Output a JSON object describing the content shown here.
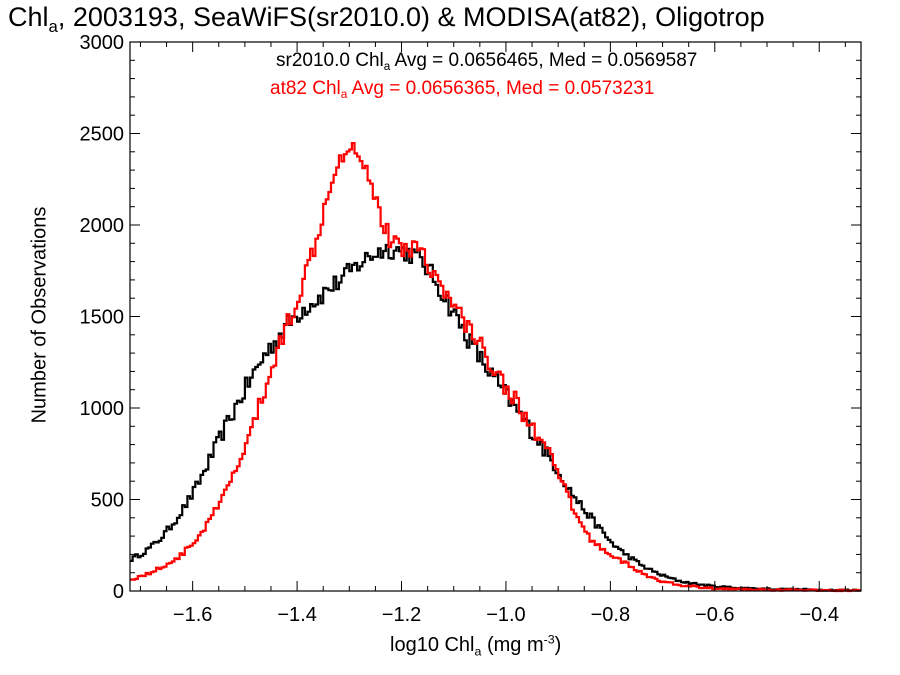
{
  "chart_data": {
    "type": "line",
    "title": {
      "prefix": "Chl",
      "sub": "a",
      "rest": ", 2003193, SeaWiFS(sr2010.0) & MODISA(at82), Oligotrop"
    },
    "xlabel": {
      "prefix": "log10 Chl",
      "sub": "a",
      "mid": " (mg m",
      "sup": "-3",
      "suffix": ")"
    },
    "ylabel": "Number of Observations",
    "xlim": [
      -1.72,
      -0.32
    ],
    "ylim": [
      0,
      3000
    ],
    "x_ticks": [
      -1.6,
      -1.4,
      -1.2,
      -1.0,
      -0.8,
      -0.6,
      -0.4
    ],
    "x_tick_labels": [
      "−1.6",
      "−1.4",
      "−1.2",
      "−1.0",
      "−0.8",
      "−0.6",
      "−0.4"
    ],
    "y_ticks": [
      0,
      500,
      1000,
      1500,
      2000,
      2500,
      3000
    ],
    "y_tick_labels": [
      "0",
      "500",
      "1000",
      "1500",
      "2000",
      "2500",
      "3000"
    ],
    "grid": false,
    "annotations": [
      {
        "series": "sr2010.0",
        "prefix": "sr2010.0 Chl",
        "sub": "a",
        "suffix": " Avg = 0.0656465, Med = 0.0569587",
        "color": "#000000"
      },
      {
        "series": "at82",
        "prefix": "at82 Chl",
        "sub": "a",
        "suffix": " Avg = 0.0656365, Med = 0.0573231",
        "color": "#ff0000"
      }
    ],
    "series": [
      {
        "name": "sr2010.0",
        "color": "#000000",
        "points": [
          [
            -1.72,
            170
          ],
          [
            -1.7,
            200
          ],
          [
            -1.68,
            240
          ],
          [
            -1.66,
            290
          ],
          [
            -1.64,
            360
          ],
          [
            -1.62,
            440
          ],
          [
            -1.6,
            530
          ],
          [
            -1.58,
            640
          ],
          [
            -1.56,
            760
          ],
          [
            -1.54,
            880
          ],
          [
            -1.52,
            990
          ],
          [
            -1.5,
            1100
          ],
          [
            -1.48,
            1200
          ],
          [
            -1.46,
            1300
          ],
          [
            -1.44,
            1370
          ],
          [
            -1.42,
            1450
          ],
          [
            -1.4,
            1510
          ],
          [
            -1.38,
            1560
          ],
          [
            -1.36,
            1600
          ],
          [
            -1.34,
            1650
          ],
          [
            -1.32,
            1690
          ],
          [
            -1.3,
            1740
          ],
          [
            -1.28,
            1790
          ],
          [
            -1.26,
            1830
          ],
          [
            -1.24,
            1860
          ],
          [
            -1.22,
            1870
          ],
          [
            -1.2,
            1860
          ],
          [
            -1.18,
            1840
          ],
          [
            -1.16,
            1800
          ],
          [
            -1.14,
            1720
          ],
          [
            -1.12,
            1620
          ],
          [
            -1.1,
            1520
          ],
          [
            -1.08,
            1420
          ],
          [
            -1.06,
            1320
          ],
          [
            -1.04,
            1230
          ],
          [
            -1.02,
            1150
          ],
          [
            -1.0,
            1070
          ],
          [
            -0.98,
            990
          ],
          [
            -0.96,
            910
          ],
          [
            -0.94,
            830
          ],
          [
            -0.92,
            740
          ],
          [
            -0.9,
            660
          ],
          [
            -0.88,
            560
          ],
          [
            -0.86,
            480
          ],
          [
            -0.84,
            410
          ],
          [
            -0.82,
            340
          ],
          [
            -0.8,
            270
          ],
          [
            -0.78,
            220
          ],
          [
            -0.76,
            180
          ],
          [
            -0.74,
            140
          ],
          [
            -0.72,
            110
          ],
          [
            -0.7,
            85
          ],
          [
            -0.68,
            65
          ],
          [
            -0.66,
            50
          ],
          [
            -0.64,
            40
          ],
          [
            -0.62,
            32
          ],
          [
            -0.6,
            25
          ],
          [
            -0.56,
            18
          ],
          [
            -0.52,
            13
          ],
          [
            -0.48,
            10
          ],
          [
            -0.44,
            8
          ],
          [
            -0.4,
            6
          ],
          [
            -0.36,
            5
          ],
          [
            -0.32,
            4
          ]
        ]
      },
      {
        "name": "at82",
        "color": "#ff0000",
        "points": [
          [
            -1.72,
            60
          ],
          [
            -1.7,
            80
          ],
          [
            -1.68,
            100
          ],
          [
            -1.66,
            130
          ],
          [
            -1.64,
            160
          ],
          [
            -1.62,
            200
          ],
          [
            -1.6,
            260
          ],
          [
            -1.58,
            330
          ],
          [
            -1.56,
            420
          ],
          [
            -1.54,
            520
          ],
          [
            -1.52,
            640
          ],
          [
            -1.5,
            780
          ],
          [
            -1.48,
            940
          ],
          [
            -1.46,
            1110
          ],
          [
            -1.44,
            1290
          ],
          [
            -1.42,
            1450
          ],
          [
            -1.4,
            1600
          ],
          [
            -1.38,
            1760
          ],
          [
            -1.36,
            1960
          ],
          [
            -1.34,
            2200
          ],
          [
            -1.32,
            2370
          ],
          [
            -1.3,
            2440
          ],
          [
            -1.28,
            2400
          ],
          [
            -1.26,
            2260
          ],
          [
            -1.24,
            2050
          ],
          [
            -1.22,
            1900
          ],
          [
            -1.2,
            1880
          ],
          [
            -1.18,
            1880
          ],
          [
            -1.16,
            1860
          ],
          [
            -1.14,
            1750
          ],
          [
            -1.12,
            1630
          ],
          [
            -1.1,
            1560
          ],
          [
            -1.08,
            1480
          ],
          [
            -1.06,
            1390
          ],
          [
            -1.04,
            1300
          ],
          [
            -1.02,
            1210
          ],
          [
            -1.0,
            1120
          ],
          [
            -0.98,
            1030
          ],
          [
            -0.96,
            940
          ],
          [
            -0.94,
            850
          ],
          [
            -0.92,
            760
          ],
          [
            -0.9,
            640
          ],
          [
            -0.88,
            510
          ],
          [
            -0.86,
            380
          ],
          [
            -0.84,
            290
          ],
          [
            -0.82,
            240
          ],
          [
            -0.8,
            200
          ],
          [
            -0.78,
            170
          ],
          [
            -0.76,
            130
          ],
          [
            -0.74,
            100
          ],
          [
            -0.72,
            70
          ],
          [
            -0.7,
            50
          ],
          [
            -0.68,
            40
          ],
          [
            -0.66,
            30
          ],
          [
            -0.64,
            24
          ],
          [
            -0.62,
            18
          ],
          [
            -0.6,
            14
          ],
          [
            -0.56,
            10
          ],
          [
            -0.52,
            8
          ],
          [
            -0.48,
            6
          ],
          [
            -0.44,
            5
          ],
          [
            -0.4,
            4
          ],
          [
            -0.36,
            3
          ],
          [
            -0.32,
            3
          ]
        ]
      }
    ]
  }
}
